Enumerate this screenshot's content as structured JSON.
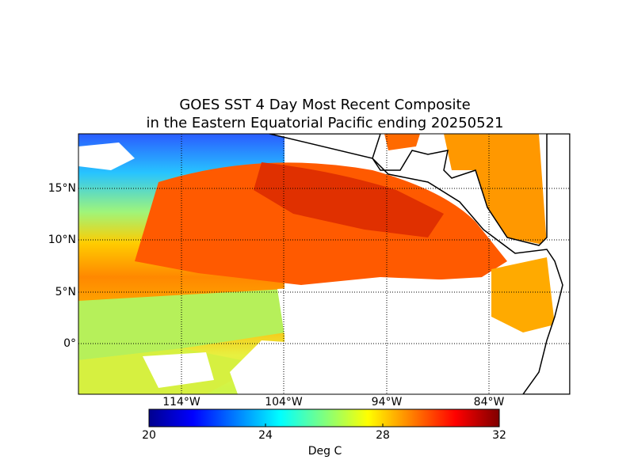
{
  "title": {
    "line1": "GOES SST 4 Day Most Recent Composite",
    "line2": "in the Eastern Equatorial Pacific ending 20250521"
  },
  "map": {
    "lat_labels": [
      "15°N",
      "10°N",
      "5°N",
      "0°"
    ],
    "lon_labels": [
      "114°W",
      "104°W",
      "94°W",
      "84°W"
    ],
    "lat_values": [
      15,
      10,
      5,
      0
    ],
    "lon_values": [
      -114,
      -104,
      -94,
      -84
    ]
  },
  "colorbar": {
    "ticks": [
      "20",
      "24",
      "28",
      "32"
    ],
    "label": "Deg C",
    "colors": [
      "#00007f",
      "#0000ff",
      "#007fff",
      "#00ffff",
      "#7fff7f",
      "#ffff00",
      "#ff7f00",
      "#ff0000",
      "#7f0000"
    ]
  }
}
